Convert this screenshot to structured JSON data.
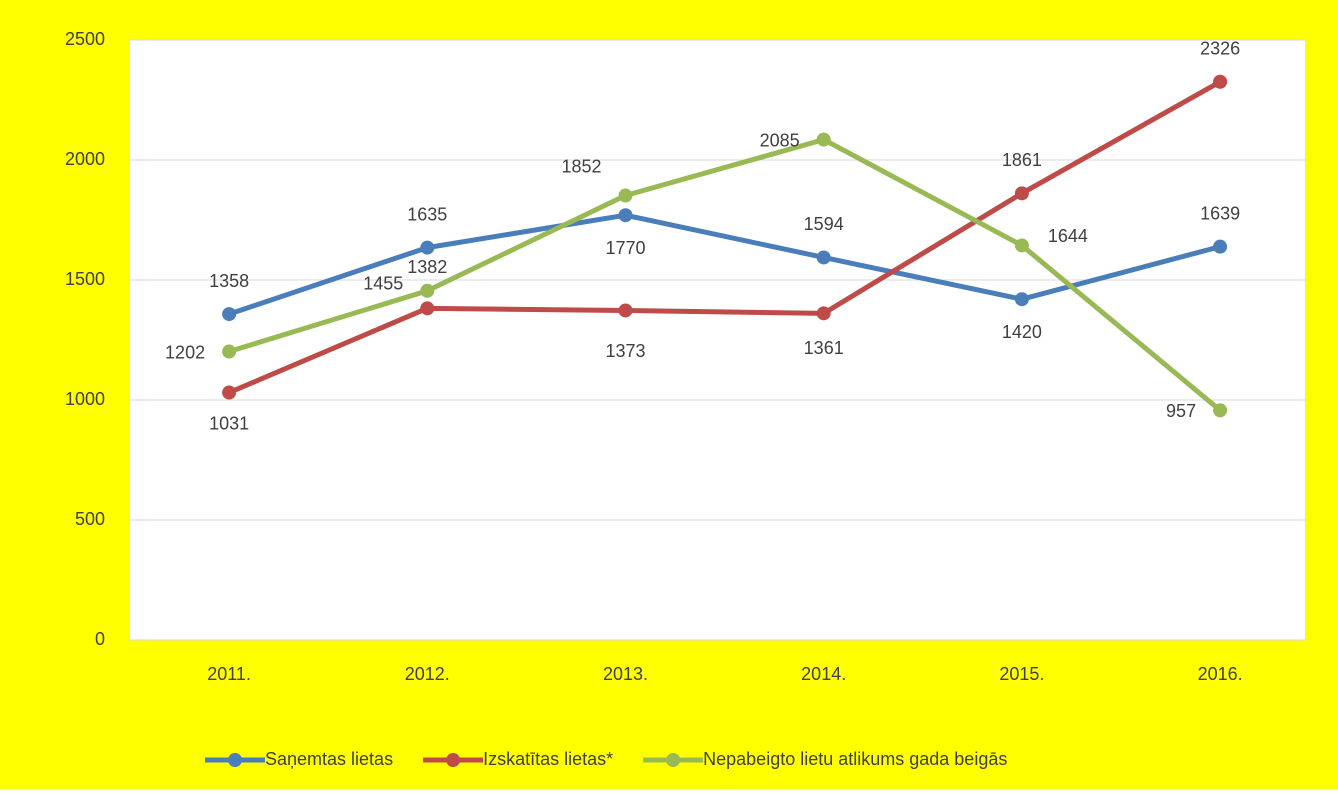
{
  "chart_data": {
    "type": "line",
    "categories": [
      "2011.",
      "2012.",
      "2013.",
      "2014.",
      "2015.",
      "2016."
    ],
    "series": [
      {
        "name": "Saņemtas lietas",
        "color": "#4a7ebb",
        "values": [
          1358,
          1635,
          1770,
          1594,
          1420,
          1639
        ]
      },
      {
        "name": "Izskatītas lietas*",
        "color": "#be4b48",
        "values": [
          1031,
          1382,
          1373,
          1361,
          1861,
          2326
        ]
      },
      {
        "name": "Nepabeigto lietu atlikums gada beigās",
        "color": "#98b954",
        "values": [
          1202,
          1455,
          1852,
          2085,
          1644,
          957
        ]
      }
    ],
    "ylim": [
      0,
      2500
    ],
    "yticks": [
      0,
      500,
      1000,
      1500,
      2000,
      2500
    ],
    "grid": true,
    "legend": "bottom"
  }
}
